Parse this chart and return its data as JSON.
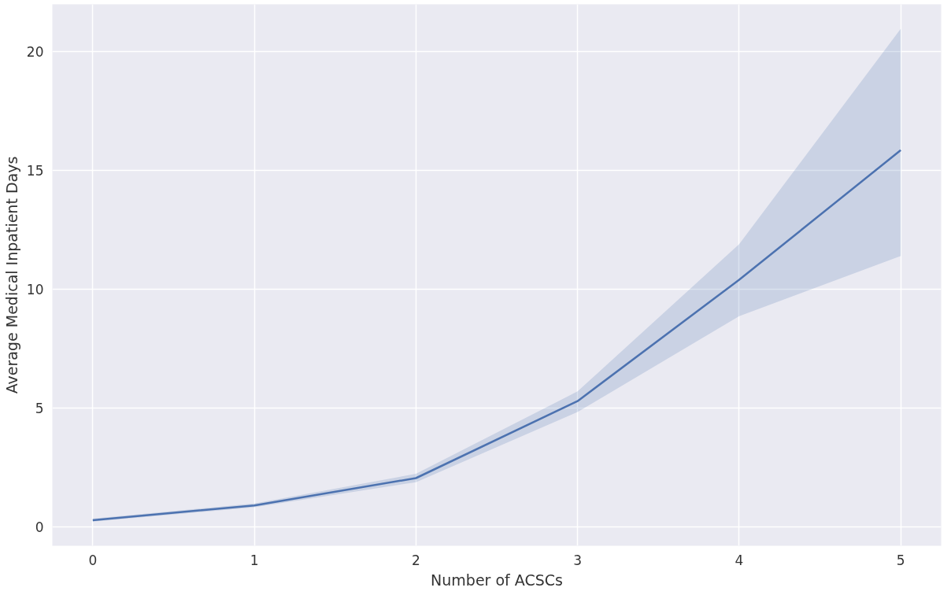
{
  "chart_data": {
    "type": "line",
    "xlabel": "Number of ACSCs",
    "ylabel": "Average Medical Inpatient Days",
    "x": [
      0,
      1,
      2,
      3,
      4,
      5
    ],
    "series": [
      {
        "color": "#4c72b0",
        "values": [
          0.28,
          0.9,
          2.05,
          5.29,
          10.4,
          15.86
        ],
        "lower": [
          0.22,
          0.82,
          1.88,
          4.83,
          8.87,
          11.4
        ],
        "upper": [
          0.34,
          0.98,
          2.23,
          5.7,
          11.9,
          20.97
        ]
      }
    ],
    "xlim": [
      -0.25,
      5.25
    ],
    "ylim": [
      -0.8,
      22.0
    ],
    "xticks": [
      0,
      1,
      2,
      3,
      4,
      5
    ],
    "yticks": [
      0,
      5,
      10,
      15,
      20
    ],
    "grid": true,
    "marker": "none",
    "line_style": "solid"
  }
}
